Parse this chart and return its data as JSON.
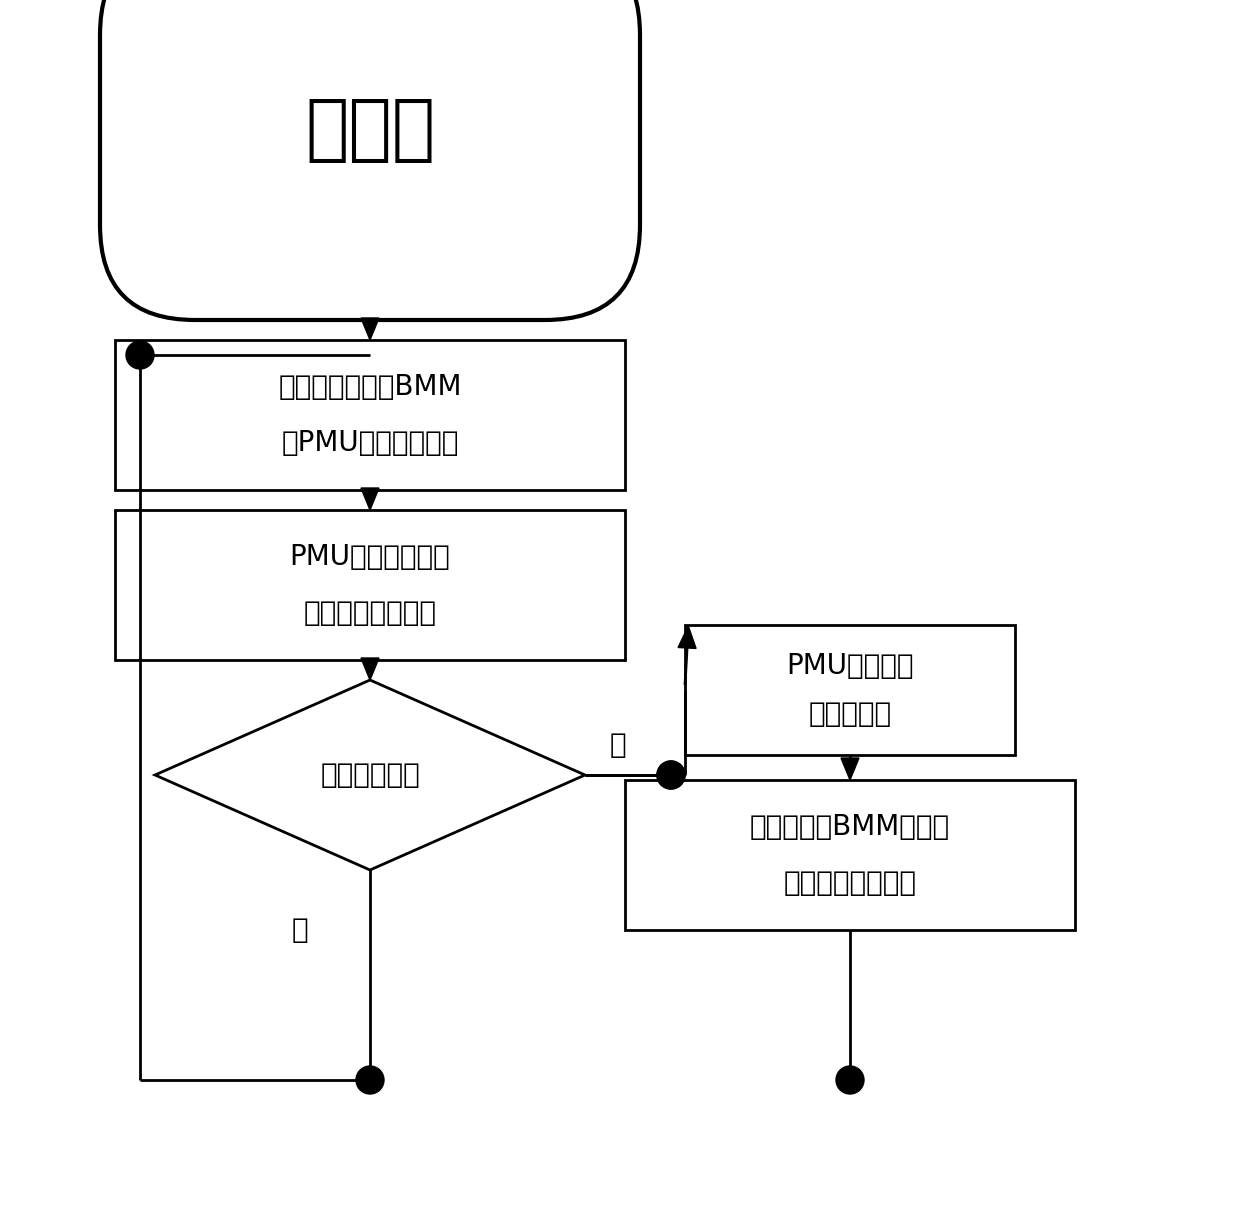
{
  "title": "第一步",
  "box1_line1": "电池包中所有的BMM",
  "box1_line2": "向PMU上送电池参数",
  "box2_line1": "PMU对电池参数进",
  "box2_line2": "行电池一致性分析",
  "diamond_text": "是否需要均衡",
  "yes_label": "是",
  "no_label": "否",
  "right_box1_line1": "PMU下发电池",
  "right_box1_line2": "串均衡命令",
  "right_box2_line1": "接到命令的BMM对电池",
  "right_box2_line2": "进行主动均衡控制",
  "bg_color": "#ffffff",
  "box_edge_color": "#000000",
  "text_color": "#000000",
  "arrow_color": "#000000",
  "font_size": 20,
  "title_font_size": 52
}
